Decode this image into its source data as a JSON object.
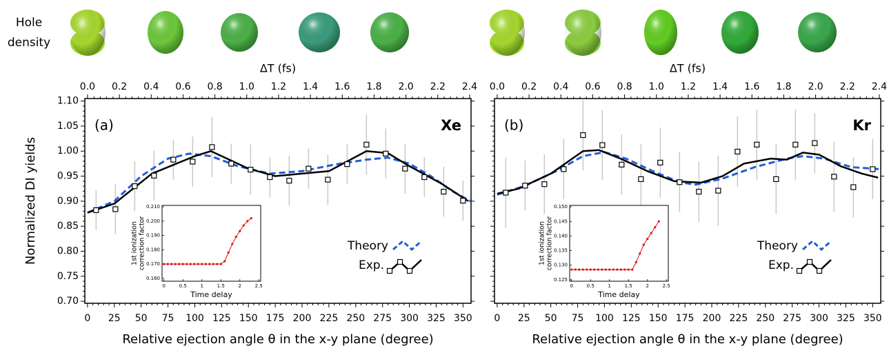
{
  "hole_density_label": [
    "Hole",
    "density"
  ],
  "chart_data": [
    {
      "type": "line",
      "label": "(a)",
      "element": "Xe",
      "xlabel": "Relative ejection angle θ in the x-y plane (degree)",
      "x2label": "ΔT (fs)",
      "ylabel": "Normalized DI yields",
      "xlim": [
        -2.5,
        357.5
      ],
      "x2lim": [
        -0.017,
        2.409
      ],
      "ylim": [
        0.696,
        1.105
      ],
      "xticks": [
        0,
        25,
        50,
        75,
        100,
        125,
        150,
        175,
        200,
        225,
        250,
        275,
        300,
        325,
        350
      ],
      "x2ticks": [
        {
          "value": 0,
          "label": "0.0"
        },
        0.2,
        0.4,
        0.6,
        0.8,
        {
          "value": 1,
          "label": "1.0"
        },
        1.2,
        1.4,
        1.6,
        1.8,
        {
          "value": 2,
          "label": "2.0"
        },
        2.2,
        2.4
      ],
      "yticks": [
        {
          "value": 0.7,
          "label": "0.70"
        },
        0.75,
        {
          "value": 0.8,
          "label": "0.80"
        },
        0.85,
        {
          "value": 0.9,
          "label": "0.90"
        },
        0.95,
        {
          "value": 1.0,
          "label": "1.00"
        },
        1.05,
        {
          "value": 1.1,
          "label": "1.10"
        }
      ],
      "ytick_labels": true,
      "legend": "bottom-right",
      "series": [
        {
          "name": "Theory",
          "color": "#1f5fd6",
          "style": "dashed",
          "x": [
            0,
            25,
            50,
            75,
            95,
            115,
            140,
            170,
            200,
            230,
            260,
            280,
            300,
            320,
            340,
            357
          ],
          "values": [
            0.877,
            0.9,
            0.95,
            0.985,
            0.995,
            0.99,
            0.97,
            0.955,
            0.96,
            0.973,
            0.983,
            0.987,
            0.975,
            0.95,
            0.92,
            0.9
          ]
        },
        {
          "name": "Exp.",
          "color": "#000000",
          "style": "solid",
          "x": [
            0,
            25,
            60,
            100,
            115,
            150,
            175,
            200,
            225,
            260,
            280,
            300,
            330,
            355
          ],
          "values": [
            0.877,
            0.895,
            0.955,
            0.99,
            1.0,
            0.965,
            0.95,
            0.955,
            0.96,
            1.0,
            0.996,
            0.97,
            0.935,
            0.9
          ]
        }
      ],
      "points": {
        "x": [
          8,
          26,
          44,
          62,
          80,
          98,
          116,
          134,
          152,
          170,
          188,
          206,
          224,
          242,
          260,
          278,
          296,
          314,
          332,
          350
        ],
        "values": [
          0.882,
          0.884,
          0.93,
          0.951,
          0.983,
          0.979,
          1.008,
          0.975,
          0.963,
          0.948,
          0.941,
          0.965,
          0.943,
          0.974,
          1.013,
          0.995,
          0.965,
          0.948,
          0.919,
          0.901
        ],
        "errors": [
          0.04,
          0.05,
          0.05,
          0.05,
          0.04,
          0.05,
          0.06,
          0.04,
          0.05,
          0.04,
          0.05,
          0.04,
          0.05,
          0.04,
          0.06,
          0.05,
          0.05,
          0.04,
          0.05,
          0.04
        ]
      },
      "inset": {
        "type": "line",
        "color": "#e01010",
        "xlabel": "Time delay",
        "ylabel": [
          "1st ionization",
          "correction factor"
        ],
        "xlim": [
          -0.05,
          2.55
        ],
        "ylim": [
          0.158,
          0.211
        ],
        "xticks": [
          0,
          0.5,
          1,
          1.5,
          2,
          2.5
        ],
        "yticks": [
          {
            "value": 0.16,
            "label": "0.160"
          },
          {
            "value": 0.17,
            "label": "0.170"
          },
          {
            "value": 0.18,
            "label": "0.180"
          },
          {
            "value": 0.19,
            "label": "0.190"
          },
          {
            "value": 0.2,
            "label": "0.200"
          },
          {
            "value": 0.21,
            "label": "0.210"
          }
        ],
        "x": [
          0,
          0.1,
          0.2,
          0.3,
          0.4,
          0.5,
          0.6,
          0.7,
          0.8,
          0.9,
          1.0,
          1.1,
          1.2,
          1.3,
          1.4,
          1.5,
          1.6,
          1.7,
          1.8,
          1.9,
          2.0,
          2.1,
          2.2,
          2.3
        ],
        "values": [
          0.17,
          0.17,
          0.17,
          0.17,
          0.17,
          0.17,
          0.17,
          0.17,
          0.17,
          0.17,
          0.17,
          0.17,
          0.17,
          0.17,
          0.17,
          0.17,
          0.172,
          0.178,
          0.184,
          0.189,
          0.193,
          0.197,
          0.2,
          0.202
        ]
      }
    },
    {
      "type": "line",
      "label": "(b)",
      "element": "Kr",
      "xlabel": "Relative ejection angle θ in the x-y plane (degree)",
      "x2label": "ΔT (fs)",
      "xlim": [
        -2.5,
        357.5
      ],
      "x2lim": [
        -0.017,
        2.409
      ],
      "ylim": [
        0.696,
        1.105
      ],
      "xticks": [
        0,
        25,
        50,
        75,
        100,
        125,
        150,
        175,
        200,
        225,
        250,
        275,
        300,
        325,
        350
      ],
      "x2ticks": [
        {
          "value": 0,
          "label": "0.0"
        },
        0.2,
        0.4,
        0.6,
        0.8,
        {
          "value": 1,
          "label": "1.0"
        },
        1.2,
        1.4,
        1.6,
        1.8,
        {
          "value": 2,
          "label": "2.0"
        },
        2.2,
        2.4
      ],
      "yticks": [
        0.7,
        0.75,
        0.8,
        0.85,
        0.9,
        0.95,
        1.0,
        1.05,
        1.1
      ],
      "ytick_labels": false,
      "legend": "bottom-right",
      "series": [
        {
          "name": "Theory",
          "color": "#1f5fd6",
          "style": "dashed",
          "x": [
            0,
            25,
            55,
            80,
            100,
            120,
            145,
            170,
            185,
            210,
            240,
            270,
            285,
            305,
            330,
            357
          ],
          "values": [
            0.913,
            0.93,
            0.96,
            0.99,
            0.998,
            0.985,
            0.96,
            0.938,
            0.933,
            0.945,
            0.968,
            0.985,
            0.99,
            0.985,
            0.968,
            0.964
          ]
        },
        {
          "name": "Exp.",
          "color": "#000000",
          "style": "solid",
          "x": [
            0,
            20,
            50,
            80,
            95,
            115,
            140,
            165,
            190,
            210,
            230,
            255,
            270,
            285,
            300,
            320,
            340,
            355
          ],
          "values": [
            0.915,
            0.925,
            0.955,
            1.0,
            1.002,
            0.985,
            0.96,
            0.94,
            0.937,
            0.95,
            0.975,
            0.985,
            0.983,
            0.997,
            0.993,
            0.97,
            0.955,
            0.947
          ]
        }
      ],
      "points": {
        "x": [
          8,
          26,
          44,
          62,
          80,
          98,
          116,
          134,
          152,
          170,
          188,
          206,
          224,
          242,
          260,
          278,
          296,
          314,
          332,
          350
        ],
        "values": [
          0.917,
          0.931,
          0.934,
          0.964,
          1.032,
          1.012,
          0.973,
          0.944,
          0.977,
          0.938,
          0.919,
          0.921,
          0.999,
          1.013,
          0.944,
          1.013,
          1.016,
          0.949,
          0.928,
          0.964
        ],
        "errors": [
          0.07,
          0.05,
          0.06,
          0.06,
          0.07,
          0.07,
          0.06,
          0.07,
          0.07,
          0.06,
          0.06,
          0.07,
          0.07,
          0.07,
          0.07,
          0.07,
          0.06,
          0.07,
          0.06,
          0.06
        ]
      },
      "inset": {
        "type": "line",
        "color": "#e01010",
        "xlabel": "Time delay",
        "ylabel": [
          "1st ionization",
          "correction factor"
        ],
        "xlim": [
          -0.05,
          2.55
        ],
        "ylim": [
          0.1245,
          0.1505
        ],
        "xticks": [
          0,
          0.5,
          1,
          1.5,
          2,
          2.5
        ],
        "yticks": [
          0.125,
          {
            "value": 0.13,
            "label": "0.130"
          },
          0.135,
          {
            "value": 0.14,
            "label": "0.140"
          },
          0.145,
          {
            "value": 0.15,
            "label": "0.150"
          }
        ],
        "x": [
          0,
          0.1,
          0.2,
          0.3,
          0.4,
          0.5,
          0.6,
          0.7,
          0.8,
          0.9,
          1.0,
          1.1,
          1.2,
          1.3,
          1.4,
          1.5,
          1.6,
          1.7,
          1.8,
          1.9,
          2.0,
          2.1,
          2.2,
          2.3
        ],
        "values": [
          0.1285,
          0.1285,
          0.1285,
          0.1285,
          0.1285,
          0.1285,
          0.1285,
          0.1285,
          0.1285,
          0.1285,
          0.1285,
          0.1285,
          0.1285,
          0.1285,
          0.1285,
          0.1285,
          0.1285,
          0.131,
          0.134,
          0.137,
          0.139,
          0.141,
          0.143,
          0.145
        ]
      }
    }
  ]
}
